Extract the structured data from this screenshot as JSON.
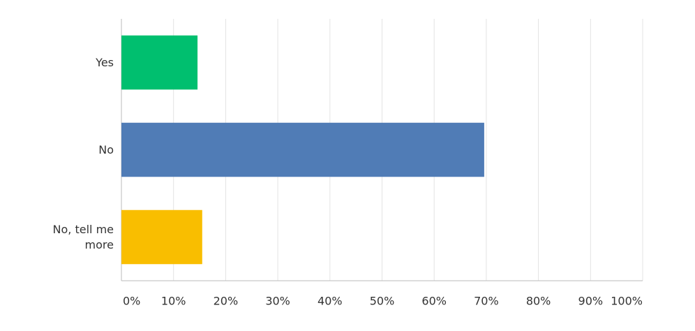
{
  "chart_data": {
    "type": "hbar",
    "categories": [
      "Yes",
      "No",
      "No, tell me more"
    ],
    "values": [
      14.6,
      69.6,
      15.5
    ],
    "colors": [
      "#00bf6f",
      "#507cb6",
      "#f9be00"
    ],
    "xlim": [
      0,
      100
    ],
    "xticks": [
      {
        "value": 0,
        "label": "0%"
      },
      {
        "value": 10,
        "label": "10%"
      },
      {
        "value": 20,
        "label": "20%"
      },
      {
        "value": 30,
        "label": "30%"
      },
      {
        "value": 40,
        "label": "40%"
      },
      {
        "value": 50,
        "label": "50%"
      },
      {
        "value": 60,
        "label": "60%"
      },
      {
        "value": 70,
        "label": "70%"
      },
      {
        "value": 80,
        "label": "80%"
      },
      {
        "value": 90,
        "label": "90%"
      },
      {
        "value": 100,
        "label": "100%"
      }
    ],
    "grid": true
  }
}
